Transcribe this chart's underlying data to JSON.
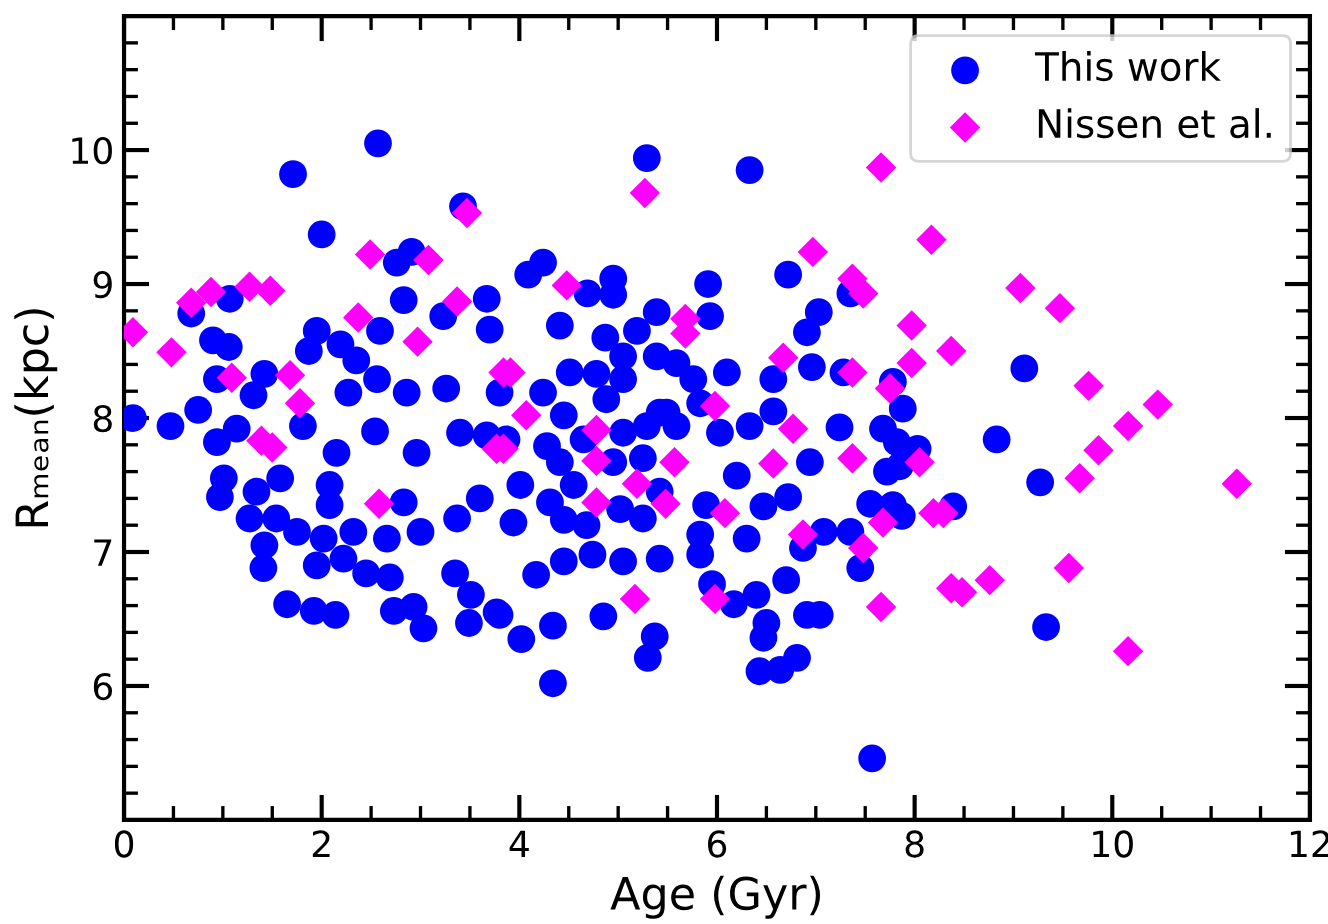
{
  "chart_data": {
    "type": "scatter",
    "xlabel": "Age (Gyr)",
    "ylabel": "Rₘₑₐₙ(kpc)",
    "xlim": [
      0,
      12
    ],
    "ylim": [
      5,
      11
    ],
    "xticks": [
      0,
      2,
      4,
      6,
      8,
      10,
      12
    ],
    "yticks": [
      6,
      7,
      8,
      9,
      10
    ],
    "legend": "top right",
    "series": [
      {
        "name": "This work",
        "color": "#0000ff",
        "marker": "circle",
        "x": [
          2.57,
          1.71,
          2.0,
          3.43,
          2.76,
          2.91,
          1.07,
          0.68,
          0.9,
          1.06,
          2.83,
          2.59,
          1.95,
          1.87,
          2.19,
          2.35,
          3.67,
          3.7,
          3.23,
          0.94,
          1.42,
          1.31,
          0.09,
          0.47,
          0.75,
          0.94,
          1.14,
          1.81,
          2.15,
          2.27,
          2.56,
          2.54,
          2.86,
          2.96,
          3.26,
          3.4,
          3.67,
          1.01,
          0.97,
          1.34,
          1.58,
          1.27,
          1.54,
          1.75,
          2.02,
          2.08,
          2.32,
          2.08,
          2.83,
          3.0,
          3.37,
          3.6,
          1.42,
          1.41,
          1.95,
          2.22,
          2.45,
          2.69,
          2.66,
          3.35,
          3.51,
          1.65,
          1.92,
          2.14,
          2.73,
          2.93,
          3.03,
          3.49,
          3.77,
          5.29,
          6.33,
          4.09,
          4.24,
          4.69,
          4.95,
          4.95,
          5.91,
          6.72,
          7.03,
          4.41,
          5.39,
          5.93,
          5.19,
          4.87,
          5.05,
          5.39,
          6.91,
          5.59,
          4.51,
          4.78,
          5.05,
          5.76,
          6.1,
          6.57,
          6.96,
          7.28,
          4.24,
          4.88,
          5.49,
          5.29,
          5.59,
          5.83,
          4.45,
          5.05,
          6.03,
          6.33,
          6.57,
          7.24,
          7.68,
          3.8,
          3.87,
          4.28,
          4.41,
          4.65,
          4.95,
          5.25,
          5.42,
          6.2,
          6.94,
          7.72,
          4.01,
          4.31,
          4.55,
          5.02,
          5.42,
          5.89,
          6.47,
          6.72,
          7.55,
          3.94,
          4.45,
          4.68,
          5.25,
          5.83,
          6.3,
          7.08,
          7.35,
          7.78,
          6.87,
          7.45,
          4.17,
          4.45,
          4.74,
          5.05,
          5.42,
          5.83,
          6.7,
          6.4,
          5.95,
          6.17,
          3.8,
          4.34,
          4.85,
          4.02,
          5.37,
          5.3,
          6.5,
          6.91,
          7.04,
          6.47,
          6.81,
          6.43,
          6.64,
          4.34,
          9.11,
          8.83,
          9.27,
          9.33,
          7.88,
          8.03,
          7.82,
          7.85,
          8.39,
          7.87,
          7.78,
          7.57,
          7.35
        ],
        "values": [
          10.05,
          9.82,
          9.37,
          9.58,
          9.16,
          9.24,
          8.89,
          8.78,
          8.58,
          8.53,
          8.88,
          8.65,
          8.65,
          8.5,
          8.55,
          8.43,
          8.89,
          8.66,
          8.76,
          8.29,
          8.33,
          8.17,
          8.0,
          7.94,
          8.06,
          7.82,
          7.92,
          7.94,
          7.74,
          8.19,
          8.29,
          7.9,
          8.19,
          7.74,
          8.22,
          7.89,
          7.87,
          7.55,
          7.41,
          7.45,
          7.55,
          7.25,
          7.25,
          7.15,
          7.1,
          7.5,
          7.15,
          7.35,
          7.37,
          7.15,
          7.25,
          7.4,
          7.05,
          6.88,
          6.9,
          6.95,
          6.84,
          6.81,
          7.1,
          6.84,
          6.68,
          6.61,
          6.56,
          6.53,
          6.56,
          6.59,
          6.43,
          6.47,
          6.55,
          9.94,
          9.85,
          9.07,
          9.16,
          8.93,
          9.04,
          8.92,
          9.0,
          9.07,
          8.79,
          8.69,
          8.79,
          8.76,
          8.65,
          8.6,
          8.46,
          8.46,
          8.64,
          8.41,
          8.34,
          8.33,
          8.29,
          8.29,
          8.34,
          8.29,
          8.38,
          8.34,
          8.19,
          8.14,
          8.04,
          7.94,
          7.94,
          8.11,
          8.02,
          7.89,
          7.89,
          7.94,
          8.05,
          7.93,
          7.92,
          8.19,
          7.84,
          7.79,
          7.67,
          7.84,
          7.67,
          7.7,
          8.04,
          7.57,
          7.67,
          7.6,
          7.5,
          7.37,
          7.5,
          7.32,
          7.45,
          7.35,
          7.34,
          7.41,
          7.36,
          7.22,
          7.24,
          7.2,
          7.25,
          7.13,
          7.1,
          7.15,
          7.15,
          7.35,
          7.03,
          6.88,
          6.83,
          6.93,
          6.98,
          6.93,
          6.95,
          6.98,
          6.79,
          6.68,
          6.76,
          6.61,
          6.53,
          6.45,
          6.52,
          6.35,
          6.37,
          6.21,
          6.47,
          6.53,
          6.53,
          6.36,
          6.21,
          6.11,
          6.12,
          6.02,
          8.37,
          7.84,
          7.52,
          6.44,
          8.07,
          7.77,
          7.82,
          7.64,
          7.34,
          7.27,
          8.27,
          5.46,
          8.93
        ]
      },
      {
        "name": "Nissen et al.",
        "color": "#ff00ff",
        "marker": "diamond",
        "x": [
          0.68,
          0.88,
          1.27,
          1.48,
          0.09,
          0.48,
          1.09,
          1.68,
          1.78,
          1.39,
          1.5,
          2.58,
          2.49,
          3.08,
          2.37,
          2.97,
          3.37,
          3.47,
          3.84,
          3.77,
          5.27,
          7.66,
          6.97,
          4.48,
          5.68,
          5.68,
          7.37,
          7.48,
          6.67,
          7.37,
          7.75,
          3.91,
          4.07,
          5.98,
          6.77,
          4.78,
          4.78,
          5.57,
          6.57,
          7.37,
          3.84,
          5.19,
          4.78,
          5.48,
          6.08,
          6.87,
          7.48,
          7.68,
          5.17,
          5.98,
          7.66,
          8.17,
          9.07,
          9.47,
          7.97,
          7.97,
          8.37,
          9.76,
          10.46,
          10.16,
          9.86,
          9.67,
          11.26,
          8.05,
          8.19,
          8.29,
          8.37,
          8.48,
          8.76,
          9.56,
          10.16
        ],
        "values": [
          8.86,
          8.94,
          8.98,
          8.95,
          8.64,
          8.49,
          8.3,
          8.32,
          8.11,
          7.83,
          7.78,
          7.36,
          9.22,
          9.18,
          8.75,
          8.57,
          8.87,
          9.53,
          8.34,
          7.77,
          9.68,
          9.87,
          9.24,
          8.99,
          8.74,
          8.63,
          9.04,
          8.93,
          8.45,
          8.34,
          8.22,
          8.34,
          8.02,
          8.09,
          7.92,
          7.91,
          7.68,
          7.67,
          7.66,
          7.7,
          7.77,
          7.51,
          7.37,
          7.36,
          7.29,
          7.13,
          7.03,
          7.22,
          6.65,
          6.65,
          6.59,
          9.33,
          8.97,
          8.82,
          8.69,
          8.41,
          8.5,
          8.24,
          8.1,
          7.94,
          7.76,
          7.55,
          7.51,
          7.67,
          7.29,
          7.29,
          6.73,
          6.7,
          6.79,
          6.88,
          6.26
        ]
      }
    ]
  }
}
